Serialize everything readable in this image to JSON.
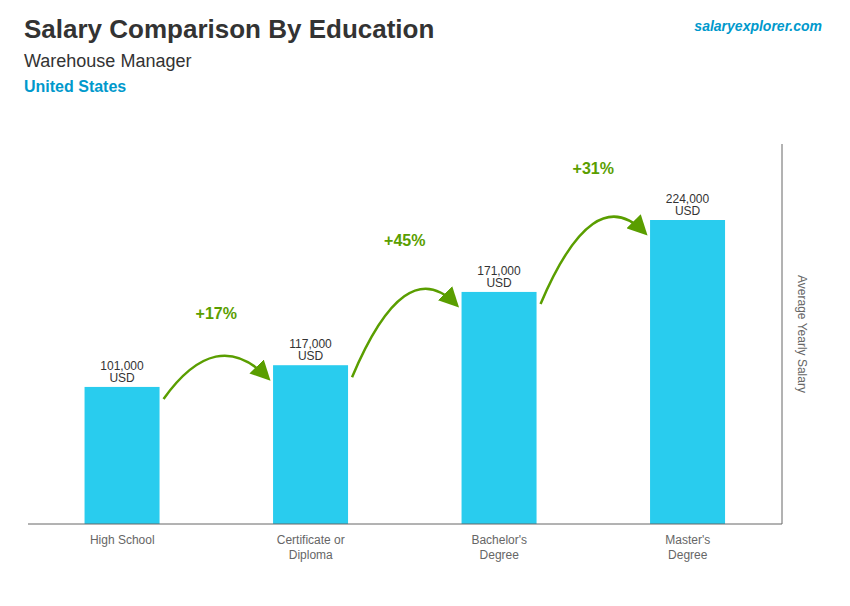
{
  "chart_data": {
    "type": "bar",
    "title": "Salary Comparison By Education",
    "subtitle": [
      "Warehouse Manager",
      "United States"
    ],
    "categories": [
      "High School",
      "Certificate or\nDiploma",
      "Bachelor's\nDegree",
      "Master's\nDegree"
    ],
    "values": [
      101000,
      117000,
      171000,
      224000
    ],
    "value_labels": [
      "101,000 USD",
      "117,000 USD",
      "171,000 USD",
      "224,000 USD"
    ],
    "data_labels": true,
    "color": "#29ccee",
    "ylabel": "Average Yearly Salary",
    "ylim": [
      0,
      280000
    ],
    "grid": false,
    "tick_labels": "x",
    "annotations": [
      {
        "text": "salaryexplorer.com"
      },
      {
        "text": "+17%",
        "from": "High School",
        "to": "Certificate or\nDiploma"
      },
      {
        "text": "+45%",
        "from": "Certificate or\nDiploma",
        "to": "Bachelor's\nDegree"
      },
      {
        "text": "+31%",
        "from": "Bachelor's\nDegree",
        "to": "Master's\nDegree"
      }
    ]
  }
}
